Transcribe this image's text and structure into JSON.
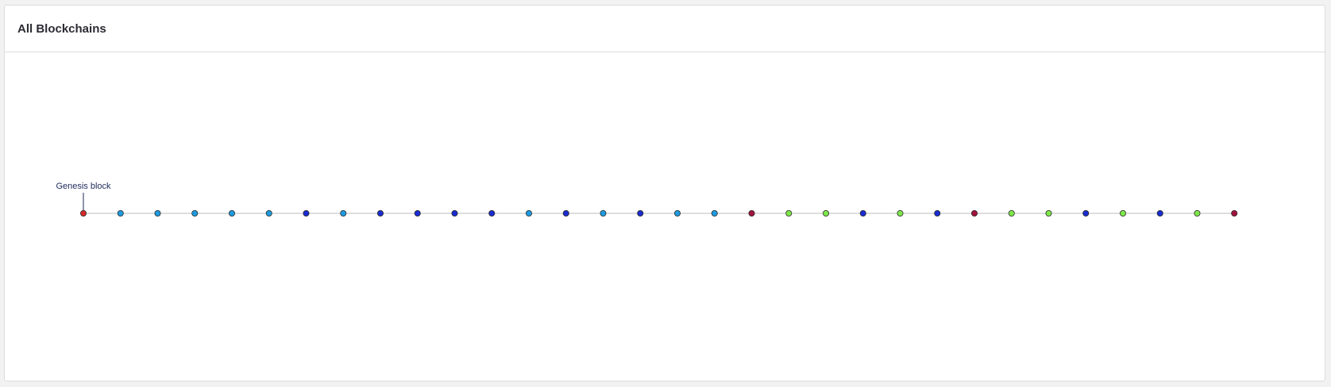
{
  "header": {
    "title": "All Blockchains"
  },
  "chain": {
    "genesis_label": "Genesis block",
    "blocks": [
      {
        "color": "#d42a2a"
      },
      {
        "color": "#1e9be0"
      },
      {
        "color": "#1e9be0"
      },
      {
        "color": "#1e9be0"
      },
      {
        "color": "#1e9be0"
      },
      {
        "color": "#1e9be0"
      },
      {
        "color": "#1a2cd0"
      },
      {
        "color": "#1e9be0"
      },
      {
        "color": "#1a2cd0"
      },
      {
        "color": "#1a2cd0"
      },
      {
        "color": "#1a2cd0"
      },
      {
        "color": "#1a2cd0"
      },
      {
        "color": "#1e9be0"
      },
      {
        "color": "#1a2cd0"
      },
      {
        "color": "#1e9be0"
      },
      {
        "color": "#1a2cd0"
      },
      {
        "color": "#1e9be0"
      },
      {
        "color": "#1e9be0"
      },
      {
        "color": "#a3123e"
      },
      {
        "color": "#7ee84a"
      },
      {
        "color": "#7ee84a"
      },
      {
        "color": "#1a2cd0"
      },
      {
        "color": "#7ee84a"
      },
      {
        "color": "#1a2cd0"
      },
      {
        "color": "#a3123e"
      },
      {
        "color": "#7ee84a"
      },
      {
        "color": "#7ee84a"
      },
      {
        "color": "#1a2cd0"
      },
      {
        "color": "#7ee84a"
      },
      {
        "color": "#1a2cd0"
      },
      {
        "color": "#7ee84a"
      },
      {
        "color": "#a3123e"
      }
    ],
    "line_color": "#bdbdbd",
    "stroke_color": "#2a2a2a"
  }
}
